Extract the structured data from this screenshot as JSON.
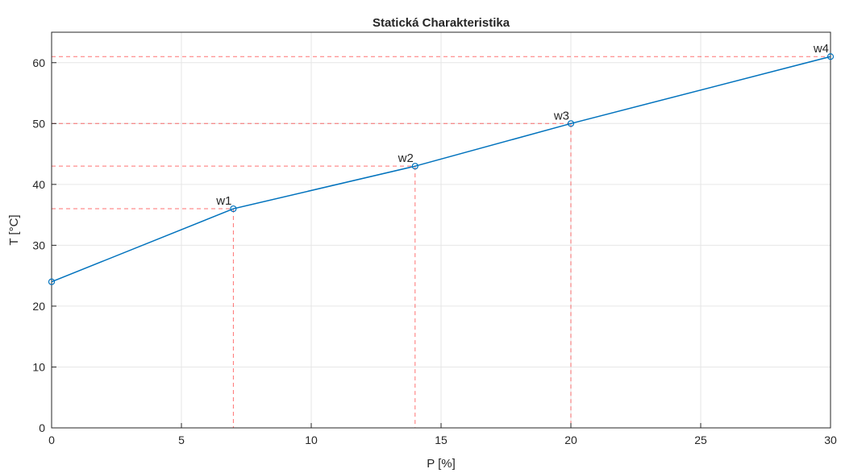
{
  "chart_data": {
    "type": "line",
    "title": "Statická Charakteristika",
    "xlabel": "P [%]",
    "ylabel": "T [°C]",
    "xlim": [
      0,
      30
    ],
    "ylim": [
      0,
      65
    ],
    "xticks": [
      0,
      5,
      10,
      15,
      20,
      25,
      30
    ],
    "yticks": [
      0,
      10,
      20,
      30,
      40,
      50,
      60
    ],
    "grid": true,
    "series": [
      {
        "x": [
          0,
          7,
          14,
          20,
          30
        ],
        "y": [
          24,
          36,
          43,
          50,
          61
        ],
        "color": "#0072BD",
        "marker": "circle"
      }
    ],
    "annotations": [
      {
        "label": "w1",
        "x": 7,
        "y": 36
      },
      {
        "label": "w2",
        "x": 14,
        "y": 43
      },
      {
        "label": "w3",
        "x": 20,
        "y": 50
      },
      {
        "label": "w4",
        "x": 30,
        "y": 61
      }
    ],
    "reference_line_color": "#FF0000"
  }
}
